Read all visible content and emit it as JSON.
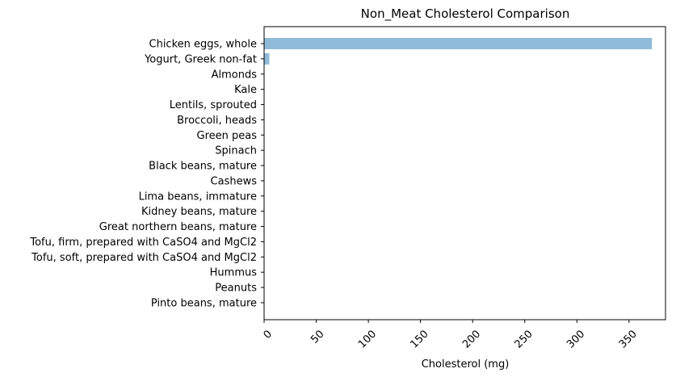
{
  "chart_data": {
    "type": "bar",
    "orientation": "horizontal",
    "title": "Non_Meat Cholesterol Comparison",
    "xlabel": "Cholesterol (mg)",
    "ylabel": "",
    "xlim": [
      0,
      385
    ],
    "xticks": [
      0,
      50,
      100,
      150,
      200,
      250,
      300,
      350
    ],
    "tick_rotation_deg": 45,
    "grid": false,
    "legend": "none",
    "bar_color": "#1f77b4",
    "bar_opacity": 0.5,
    "categories": [
      "Chicken eggs, whole",
      "Yogurt, Greek non-fat",
      "Almonds",
      "Kale",
      "Lentils, sprouted",
      "Broccoli, heads",
      "Green peas",
      "Spinach",
      "Black beans, mature",
      "Cashews",
      "Lima beans, immature",
      "Kidney beans, mature",
      "Great northern beans, mature",
      "Tofu, firm, prepared with CaSO4 and MgCl2",
      "Tofu, soft, prepared with CaSO4 and MgCl2",
      "Hummus",
      "Peanuts",
      "Pinto beans, mature"
    ],
    "values": [
      372,
      5,
      0,
      0,
      0,
      0,
      0,
      0,
      0,
      0,
      0,
      0,
      0,
      0,
      0,
      0,
      0,
      0
    ]
  }
}
